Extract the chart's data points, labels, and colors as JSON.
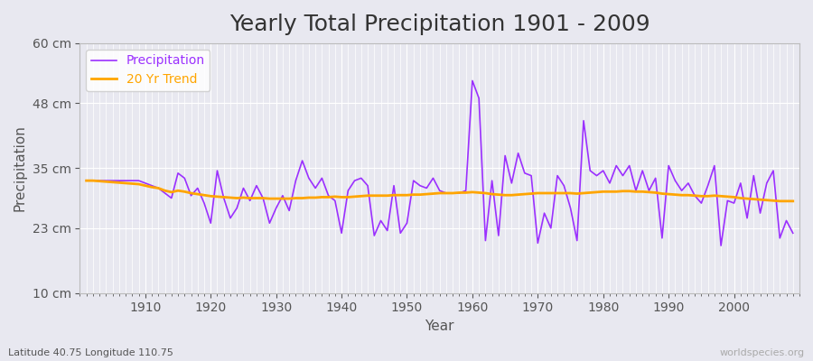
{
  "title": "Yearly Total Precipitation 1901 - 2009",
  "xlabel": "Year",
  "ylabel": "Precipitation",
  "subtitle": "Latitude 40.75 Longitude 110.75",
  "watermark": "worldspecies.org",
  "years": [
    1901,
    1902,
    1903,
    1904,
    1905,
    1906,
    1907,
    1908,
    1909,
    1910,
    1911,
    1912,
    1913,
    1914,
    1915,
    1916,
    1917,
    1918,
    1919,
    1920,
    1921,
    1922,
    1923,
    1924,
    1925,
    1926,
    1927,
    1928,
    1929,
    1930,
    1931,
    1932,
    1933,
    1934,
    1935,
    1936,
    1937,
    1938,
    1939,
    1940,
    1941,
    1942,
    1943,
    1944,
    1945,
    1946,
    1947,
    1948,
    1949,
    1950,
    1951,
    1952,
    1953,
    1954,
    1955,
    1956,
    1957,
    1958,
    1959,
    1960,
    1961,
    1962,
    1963,
    1964,
    1965,
    1966,
    1967,
    1968,
    1969,
    1970,
    1971,
    1972,
    1973,
    1974,
    1975,
    1976,
    1977,
    1978,
    1979,
    1980,
    1981,
    1982,
    1983,
    1984,
    1985,
    1986,
    1987,
    1988,
    1989,
    1990,
    1991,
    1992,
    1993,
    1994,
    1995,
    1996,
    1997,
    1998,
    1999,
    2000,
    2001,
    2002,
    2003,
    2004,
    2005,
    2006,
    2007,
    2008,
    2009
  ],
  "precipitation": [
    32.5,
    32.5,
    32.5,
    32.5,
    32.5,
    32.5,
    32.5,
    32.5,
    32.5,
    32.0,
    31.5,
    31.0,
    30.0,
    29.0,
    34.0,
    33.0,
    29.5,
    31.0,
    28.0,
    24.0,
    34.5,
    29.0,
    25.0,
    27.0,
    31.0,
    28.5,
    31.5,
    29.0,
    24.0,
    27.0,
    29.5,
    26.5,
    32.5,
    36.5,
    33.0,
    31.0,
    33.0,
    29.5,
    28.5,
    22.0,
    30.5,
    32.5,
    33.0,
    31.5,
    21.5,
    24.5,
    22.5,
    31.5,
    22.0,
    24.0,
    32.5,
    31.5,
    31.0,
    33.0,
    30.5,
    30.0,
    30.0,
    30.0,
    30.5,
    52.5,
    49.0,
    20.5,
    32.5,
    21.5,
    37.5,
    32.0,
    38.0,
    34.0,
    33.5,
    20.0,
    26.0,
    23.0,
    33.5,
    31.5,
    27.0,
    20.5,
    44.5,
    34.5,
    33.5,
    34.5,
    32.0,
    35.5,
    33.5,
    35.5,
    30.5,
    34.5,
    30.5,
    33.0,
    21.0,
    35.5,
    32.5,
    30.5,
    32.0,
    29.5,
    28.0,
    31.5,
    35.5,
    19.5,
    28.5,
    28.0,
    32.0,
    25.0,
    33.5,
    26.0,
    32.0,
    34.5,
    21.0,
    24.5,
    22.0
  ],
  "trend": [
    32.5,
    32.5,
    32.4,
    32.3,
    32.2,
    32.1,
    32.0,
    31.9,
    31.8,
    31.5,
    31.2,
    31.0,
    30.5,
    30.2,
    30.5,
    30.3,
    30.0,
    29.8,
    29.6,
    29.4,
    29.3,
    29.2,
    29.1,
    29.0,
    29.1,
    29.0,
    29.0,
    29.0,
    28.9,
    28.9,
    28.9,
    28.9,
    29.0,
    29.0,
    29.1,
    29.1,
    29.2,
    29.2,
    29.3,
    29.2,
    29.2,
    29.3,
    29.4,
    29.5,
    29.5,
    29.5,
    29.5,
    29.6,
    29.6,
    29.6,
    29.7,
    29.7,
    29.8,
    29.9,
    30.0,
    30.0,
    30.0,
    30.1,
    30.1,
    30.2,
    30.1,
    30.0,
    29.8,
    29.7,
    29.6,
    29.6,
    29.7,
    29.8,
    29.9,
    30.0,
    30.0,
    30.0,
    30.0,
    30.0,
    30.0,
    29.9,
    30.0,
    30.1,
    30.2,
    30.3,
    30.3,
    30.3,
    30.4,
    30.4,
    30.3,
    30.3,
    30.2,
    30.1,
    29.9,
    29.8,
    29.7,
    29.6,
    29.6,
    29.5,
    29.4,
    29.4,
    29.5,
    29.4,
    29.3,
    29.2,
    29.0,
    28.9,
    28.8,
    28.7,
    28.6,
    28.5,
    28.4,
    28.4,
    28.4
  ],
  "precip_color": "#9B30FF",
  "trend_color": "#FFA500",
  "bg_color": "#E8E8F0",
  "plot_bg_color": "#E8E8F0",
  "grid_color": "#FFFFFF",
  "ylim": [
    10,
    60
  ],
  "yticks": [
    10,
    23,
    35,
    48,
    60
  ],
  "ytick_labels": [
    "10 cm",
    "23 cm",
    "35 cm",
    "48 cm",
    "60 cm"
  ],
  "xlim": [
    1900,
    2010
  ],
  "xticks": [
    1910,
    1920,
    1930,
    1940,
    1950,
    1960,
    1970,
    1980,
    1990,
    2000
  ],
  "title_fontsize": 18,
  "label_fontsize": 11,
  "tick_fontsize": 10,
  "legend_fontsize": 10
}
